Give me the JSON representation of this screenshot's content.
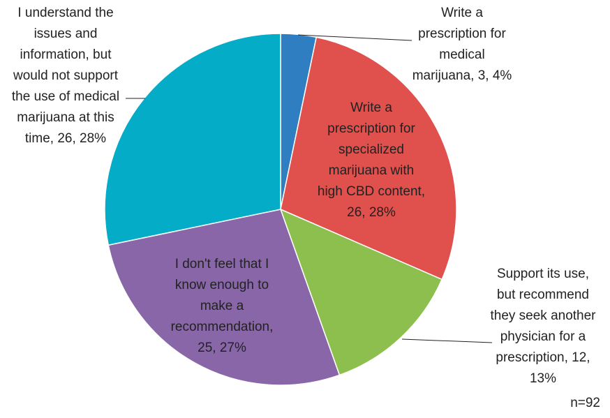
{
  "chart_data": {
    "type": "pie",
    "start": "top, clockwise",
    "slices": [
      {
        "label": "Write a prescription for medical marijuana, 3, 4%",
        "label_lines": [
          "Write a",
          "prescription for",
          "medical",
          "marijuana, 3, 4%"
        ],
        "value": 3,
        "percent": 4,
        "color": "#2E7EC1"
      },
      {
        "label": "Write a prescription for specialized marijuana with high CBD content, 26, 28%",
        "label_lines": [
          "Write a",
          "prescription for",
          "specialized",
          "marijuana with",
          "high CBD content,",
          "26, 28%"
        ],
        "value": 26,
        "percent": 28,
        "color": "#E0504D"
      },
      {
        "label": "Support its use, but recommend they seek another physician for a prescription, 12, 13%",
        "label_lines": [
          "Support its use,",
          "but recommend",
          "they seek another",
          "physician for a",
          "prescription, 12,",
          "13%"
        ],
        "value": 12,
        "percent": 13,
        "color": "#8DBF4E"
      },
      {
        "label": "I don't feel that I know enough to make a recommendation, 25, 27%",
        "label_lines": [
          "I don't feel that I",
          "know enough to",
          "make a",
          "recommendation,",
          "25, 27%"
        ],
        "value": 25,
        "percent": 27,
        "color": "#8866A8"
      },
      {
        "label": "I understand the issues and information, but would not support the use of medical marijuana at this time, 26, 28%",
        "label_lines": [
          "I understand the",
          "issues and",
          "information, but",
          "would not support",
          "the use of medical",
          "marijuana at this",
          "time, 26, 28%"
        ],
        "value": 26,
        "percent": 28,
        "color": "#04ACC8"
      }
    ],
    "note": "n=92"
  }
}
